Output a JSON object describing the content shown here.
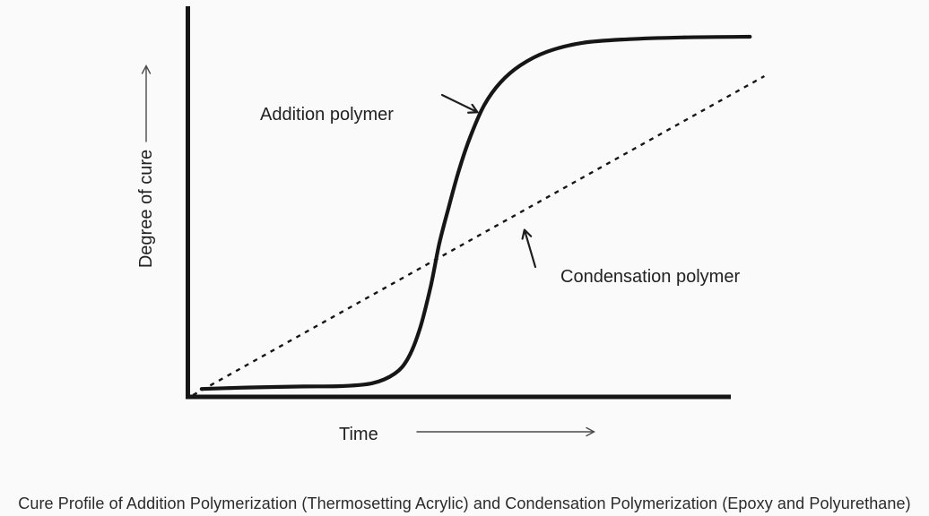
{
  "page": {
    "background": "#fafafa",
    "ink": "#161616"
  },
  "caption": {
    "text": "Cure Profile of Addition Polymerization (Thermosetting Acrylic) and Condensation Polymerization (Epoxy and Polyurethane)"
  },
  "chart_data": {
    "type": "line",
    "title": "",
    "xlabel": "Time",
    "ylabel": "Degree of cure",
    "grid": false,
    "legend": "none",
    "axes_style": "qualitative, no tick marks or numeric labels, direction arrows on both axis labels",
    "x_range_norm": [
      0,
      1
    ],
    "y_range_norm": [
      0,
      1
    ],
    "series": [
      {
        "name": "Addition polymer",
        "line_style": "solid",
        "shape": "sigmoid S-curve: long induction period, steep rise, plateau",
        "points": [
          [
            0.023,
            0.022
          ],
          [
            0.1,
            0.026
          ],
          [
            0.2,
            0.029
          ],
          [
            0.264,
            0.03
          ],
          [
            0.318,
            0.038
          ],
          [
            0.357,
            0.065
          ],
          [
            0.38,
            0.108
          ],
          [
            0.4,
            0.188
          ],
          [
            0.419,
            0.308
          ],
          [
            0.434,
            0.428
          ],
          [
            0.45,
            0.528
          ],
          [
            0.468,
            0.633
          ],
          [
            0.488,
            0.728
          ],
          [
            0.512,
            0.815
          ],
          [
            0.54,
            0.878
          ],
          [
            0.574,
            0.925
          ],
          [
            0.62,
            0.963
          ],
          [
            0.682,
            0.988
          ],
          [
            0.76,
            0.998
          ],
          [
            0.853,
            1.003
          ],
          [
            0.971,
            1.005
          ]
        ]
      },
      {
        "name": "Condensation polymer",
        "line_style": "dashed",
        "shape": "straight line of constant slope from origin",
        "points": [
          [
            0.008,
            0.005
          ],
          [
            0.996,
            0.895
          ]
        ]
      }
    ]
  }
}
